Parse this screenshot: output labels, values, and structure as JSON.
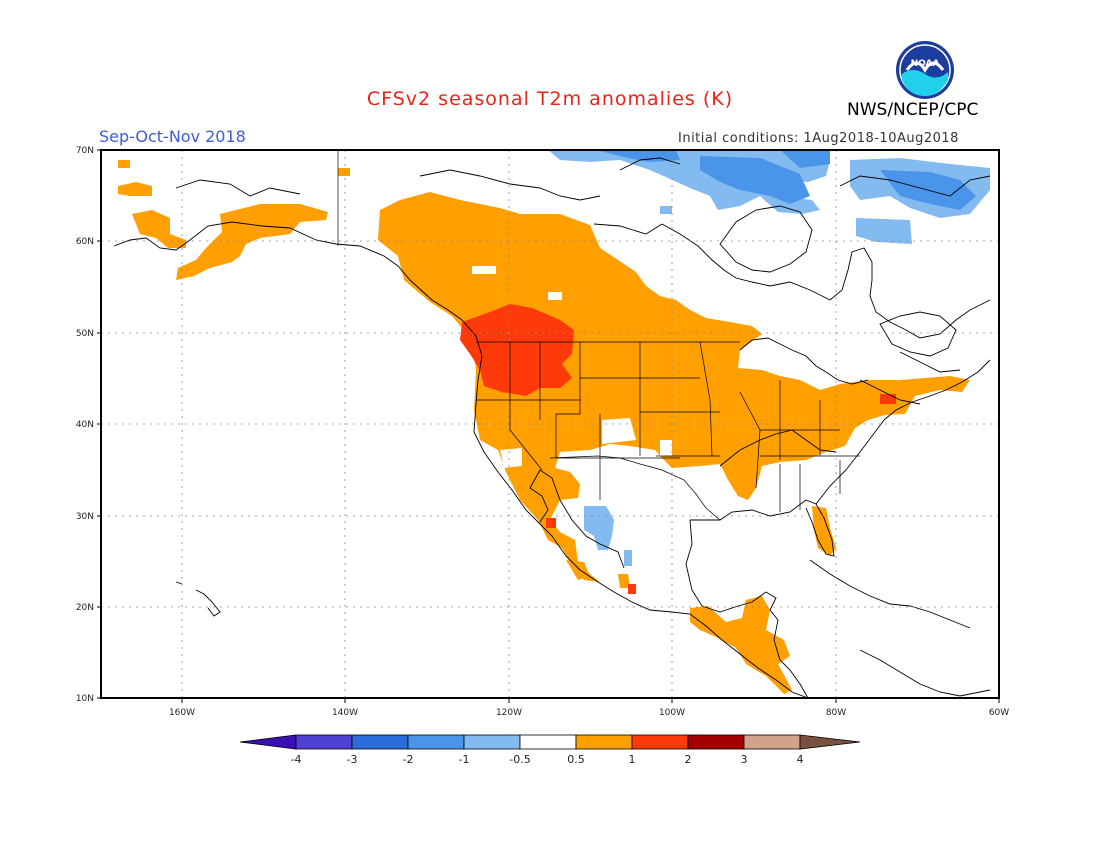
{
  "title": "CFSv2 seasonal T2m anomalies (K)",
  "season": "Sep-Oct-Nov 2018",
  "initial_conditions": "Initial conditions: 1Aug2018-10Aug2018",
  "agency": "NWS/NCEP/CPC",
  "logo_text": "NOAA",
  "lat_ticks": [
    "70N",
    "60N",
    "50N",
    "40N",
    "30N",
    "20N",
    "10N"
  ],
  "lon_ticks": [
    "160W",
    "140W",
    "120W",
    "100W",
    "80W",
    "60W"
  ],
  "colorbar": {
    "labels": [
      "-4",
      "-3",
      "-2",
      "-1",
      "-0.5",
      "0.5",
      "1",
      "2",
      "3",
      "4"
    ],
    "colors": [
      "#3a0fb4",
      "#5140d6",
      "#2a6cd9",
      "#4a94ea",
      "#83baf0",
      "#ffffff",
      "#ff9f00",
      "#ff3a0a",
      "#a50000",
      "#d2a28a",
      "#7a5040"
    ]
  }
}
